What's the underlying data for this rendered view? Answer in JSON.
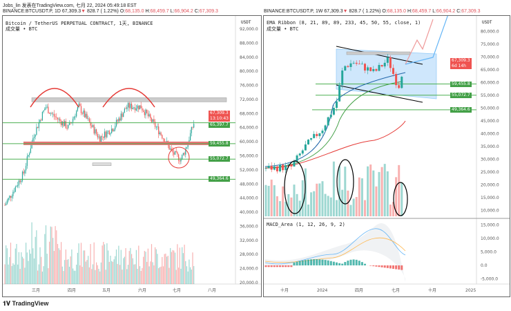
{
  "header": {
    "line1": "Jobs_lin 发表在TradingView.com, 七月 22, 2024 05:49:18 EST"
  },
  "left": {
    "symbol": "BINANCE:BTCUSDT.P, 1D 67,309.3",
    "arrow": "▼",
    "change": " 828.7 ( 1.22%)",
    "o_label": "O:",
    "o": "68,135.0",
    "h_label": "H:",
    "h": "68,459.7",
    "l_label": "L:",
    "l": "66,904.2",
    "c_label": "C:",
    "c": "67,309.3",
    "title": "Bitcoin / TetherUS PERPETUAL CONTRACT, 1天, BINANCE",
    "volume_label": "成交量 • BTC",
    "currency": "USDT",
    "axis": [
      "92,000.0",
      "88,000.0",
      "84,000.0",
      "80,000.0",
      "76,000.0",
      "72,000.0",
      "68,000.0",
      "64,000.0",
      "60,000.0",
      "56,000.0",
      "52,000.0",
      "48,000.0",
      "44,000.0",
      "40,000.0",
      "36,000.0",
      "32,000.0",
      "28,000.0",
      "24,000.0",
      "20,000.0"
    ],
    "price_tag": "67,309.3",
    "countdown": "13:10:43",
    "levels": [
      "65,397.7",
      "59,455.8",
      "55,072.7",
      "49,364.6"
    ],
    "months": [
      "三月",
      "四月",
      "五月",
      "六月",
      "七月",
      "八月"
    ]
  },
  "right": {
    "symbol": "BINANCE:BTCUSDT.P, 1W 67,309.3",
    "arrow": "▼",
    "change": " 828.7 ( 1.22%)",
    "o_label": "O:",
    "o": "68,135.0",
    "h_label": "H:",
    "h": "68,459.7",
    "l_label": "L:",
    "l": "66,904.2",
    "c_label": "C:",
    "c": "67,309.3",
    "title": "EMA Ribbon (8, 21, 89, 89, 233, 45, 50, 55, close, 1)",
    "volume_label": "成交量 • BTC",
    "currency": "USDT",
    "axis": [
      "80,000.0",
      "75,000.0",
      "70,000.0",
      "65,000.0",
      "60,000.0",
      "55,000.0",
      "50,000.0",
      "45,000.0",
      "40,000.0",
      "35,000.0",
      "30,000.0",
      "25,000.0",
      "20,000.0",
      "15,000.0",
      "10,000.0"
    ],
    "price_tag": "67,309.3",
    "countdown": "6d 14h",
    "levels": [
      "59,455.8",
      "55,072.7",
      "49,364.6"
    ],
    "macd_title": "MACD_Area (1, 12, 26, 9, 2)",
    "macd_axis": [
      "15,000.0",
      "10,000.0",
      "5,000.0",
      "0.0",
      "-5,000.0"
    ],
    "months": [
      "十月",
      "2024",
      "四月",
      "七月",
      "十月",
      "2025"
    ]
  },
  "colors": {
    "up": "#26a69a",
    "down": "#ef5350",
    "level": "#4caf50",
    "annot": "#e53935"
  },
  "brand": "TradingView"
}
